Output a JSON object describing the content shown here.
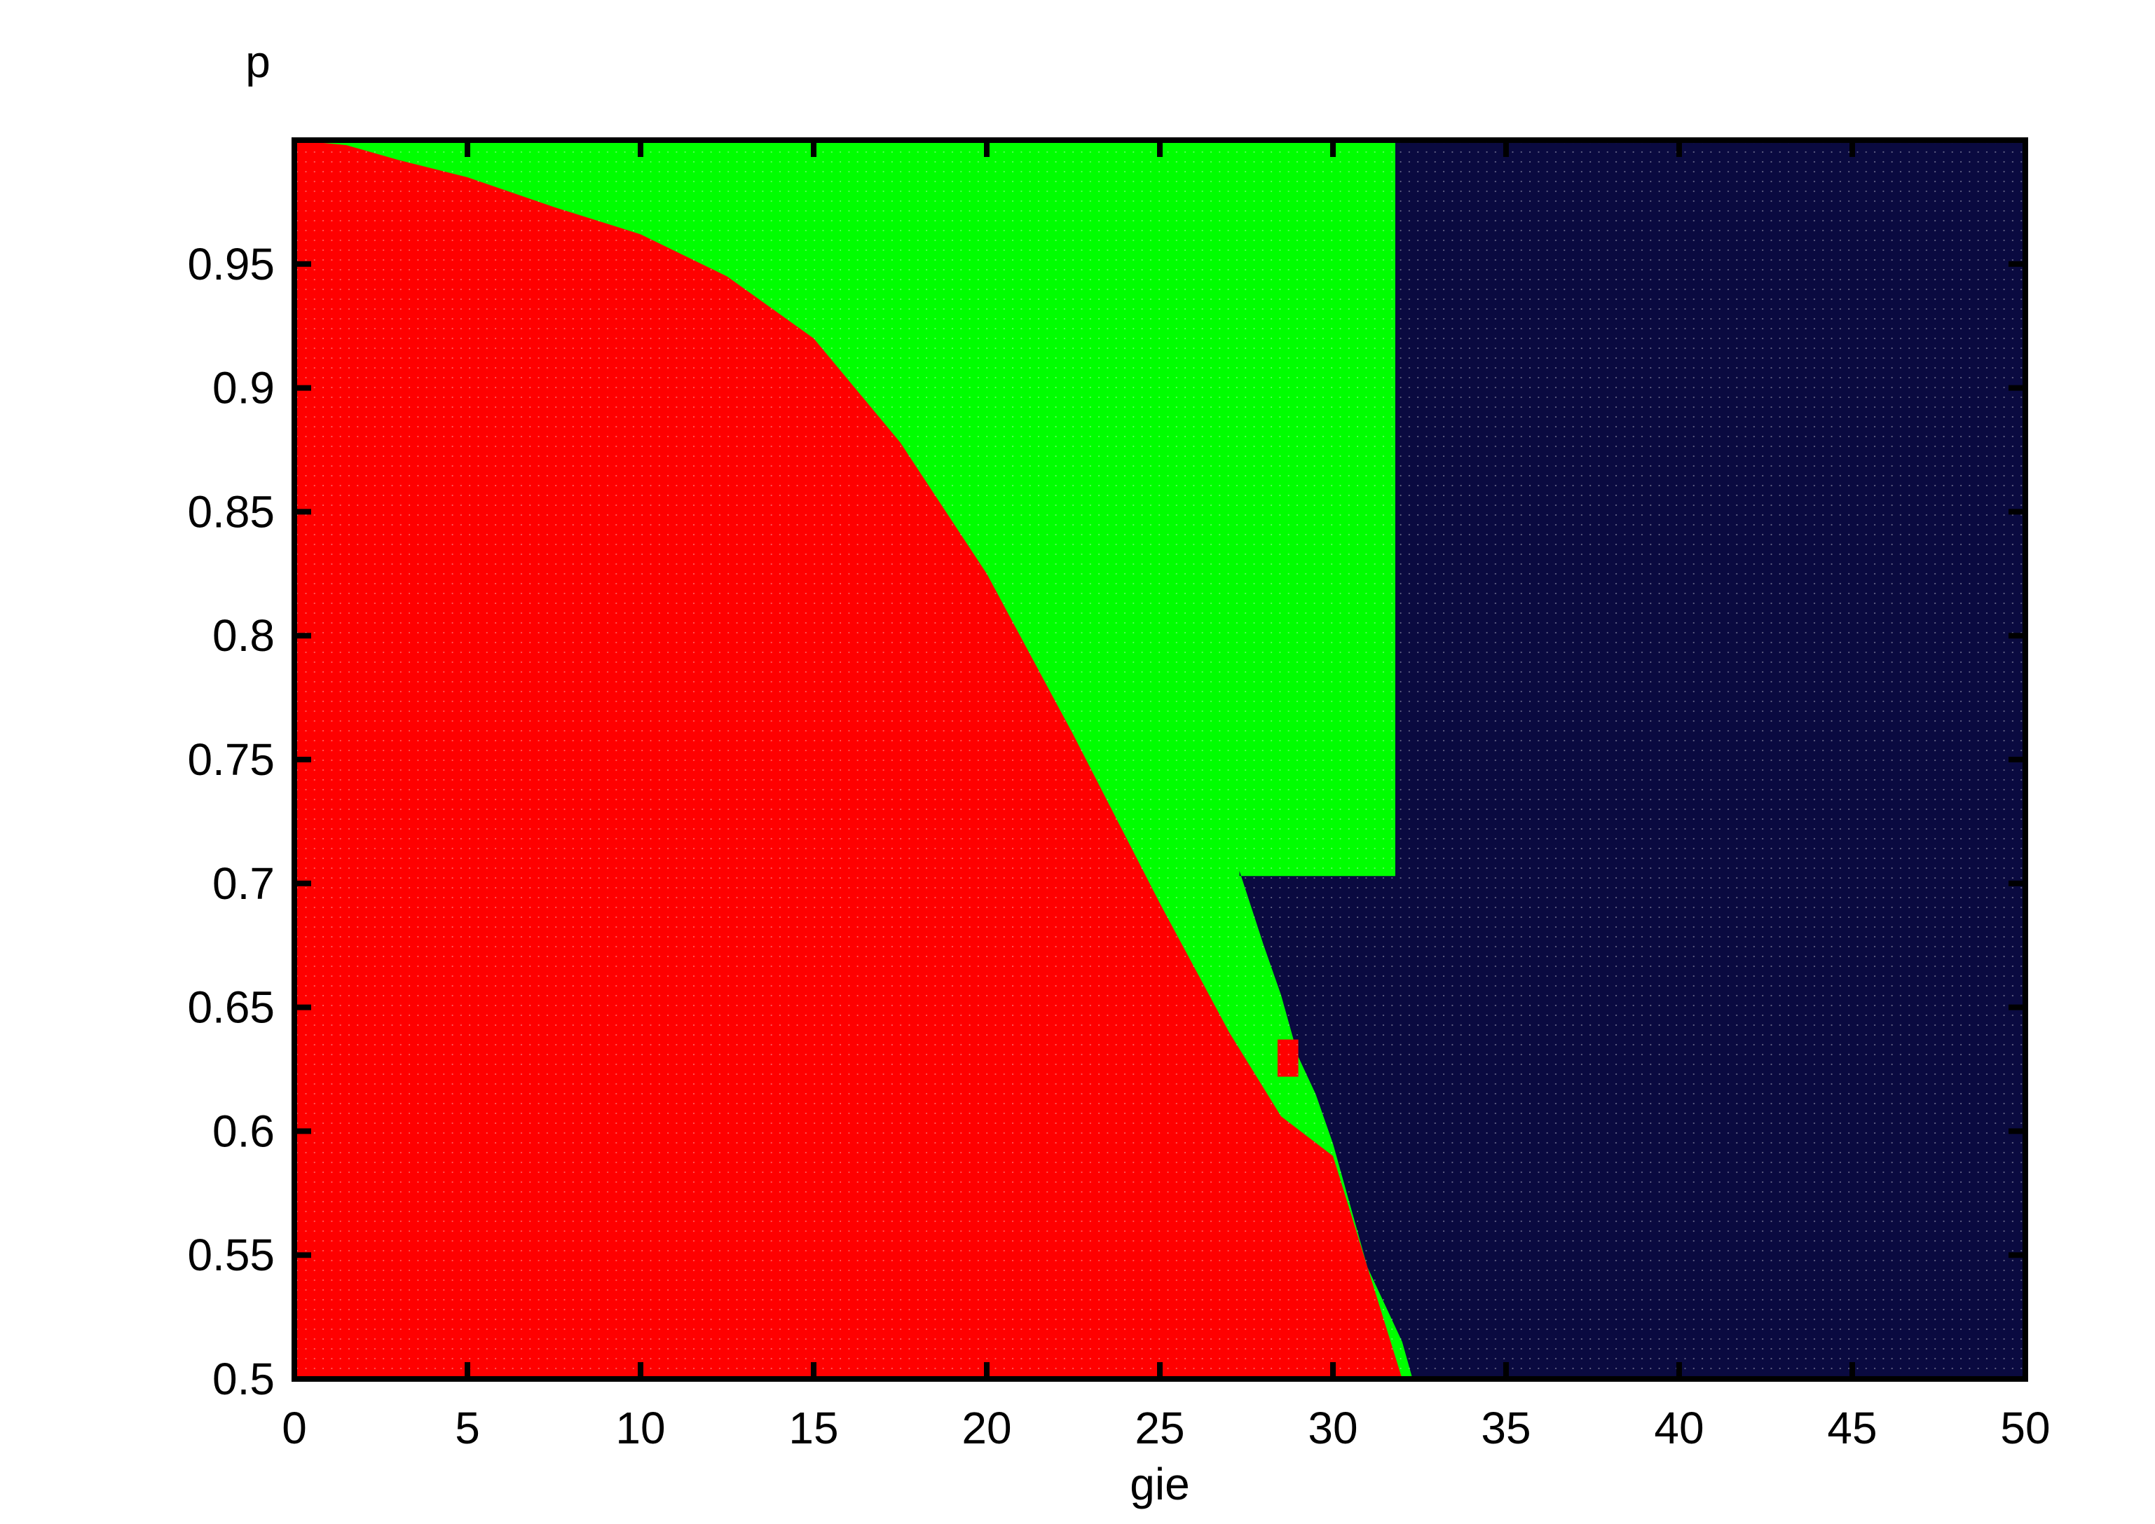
{
  "chart_data": {
    "type": "heatmap",
    "title": "",
    "xlabel": "gie",
    "ylabel": "p",
    "xlim": [
      0,
      50
    ],
    "ylim": [
      0.5,
      1.0
    ],
    "x_ticks": [
      "0",
      "5",
      "10",
      "15",
      "20",
      "25",
      "30",
      "35",
      "40",
      "45",
      "50"
    ],
    "y_ticks": [
      "0.5",
      "0.55",
      "0.6",
      "0.65",
      "0.7",
      "0.75",
      "0.8",
      "0.85",
      "0.9",
      "0.95"
    ],
    "grid": false,
    "legend": "none",
    "categories": [
      {
        "id": "red",
        "color": "#ff0000"
      },
      {
        "id": "green",
        "color": "#00ff00"
      },
      {
        "id": "navy",
        "color": "#0a0a40"
      }
    ],
    "boundaries": {
      "red_green_upper_edge": [
        {
          "gie": 0,
          "p": 1.0
        },
        {
          "gie": 1.5,
          "p": 0.998
        },
        {
          "gie": 3,
          "p": 0.992
        },
        {
          "gie": 5,
          "p": 0.985
        },
        {
          "gie": 7.5,
          "p": 0.973
        },
        {
          "gie": 10,
          "p": 0.962
        },
        {
          "gie": 12.5,
          "p": 0.945
        },
        {
          "gie": 15,
          "p": 0.92
        },
        {
          "gie": 17.5,
          "p": 0.878
        },
        {
          "gie": 20,
          "p": 0.825
        },
        {
          "gie": 22.5,
          "p": 0.76
        },
        {
          "gie": 25,
          "p": 0.692
        },
        {
          "gie": 27,
          "p": 0.64
        },
        {
          "gie": 28.5,
          "p": 0.606
        },
        {
          "gie": 30,
          "p": 0.59
        },
        {
          "gie": 31,
          "p": 0.545
        },
        {
          "gie": 32,
          "p": 0.5
        }
      ],
      "navy_left_edge_lower": [
        {
          "p": 0.5,
          "gie": 32.3
        },
        {
          "p": 0.515,
          "gie": 32.0
        },
        {
          "p": 0.53,
          "gie": 31.5
        },
        {
          "p": 0.545,
          "gie": 31.0
        },
        {
          "p": 0.57,
          "gie": 30.5
        },
        {
          "p": 0.595,
          "gie": 30.0
        },
        {
          "p": 0.615,
          "gie": 29.5
        },
        {
          "p": 0.63,
          "gie": 29.0
        },
        {
          "p": 0.655,
          "gie": 28.5
        },
        {
          "p": 0.675,
          "gie": 28.0
        },
        {
          "p": 0.705,
          "gie": 27.3
        }
      ],
      "green_navy_shelf_p": 0.703,
      "navy_full_column_from_gie": 31.8,
      "red_island": {
        "gie": [
          28.4,
          29.0
        ],
        "p": [
          0.622,
          0.637
        ]
      }
    }
  }
}
